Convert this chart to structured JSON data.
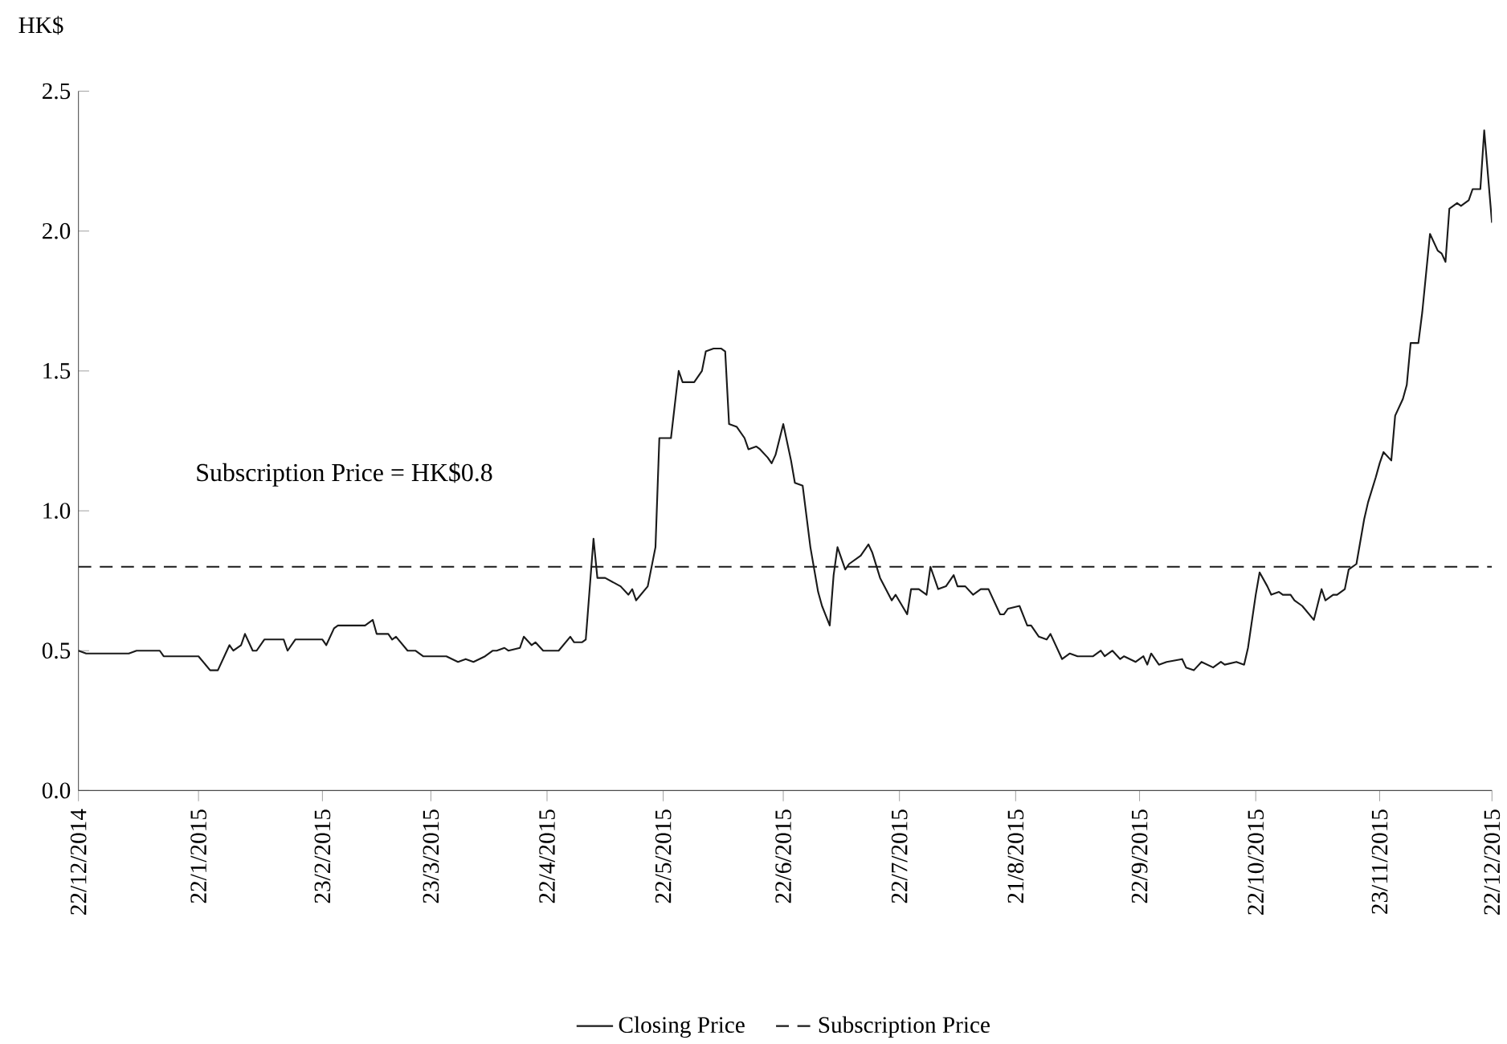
{
  "chart_data": {
    "type": "line",
    "ylabel": "HK$",
    "annotations": [
      "Subscription Price = HK$0.8"
    ],
    "xlim": [
      "2014-12-22",
      "2015-12-22"
    ],
    "ylim": [
      0,
      2.5
    ],
    "xticks": [
      {
        "value": "2014-12-22",
        "label": "22/12/2014"
      },
      {
        "value": "2015-01-22",
        "label": "22/1/2015"
      },
      {
        "value": "2015-02-23",
        "label": "23/2/2015"
      },
      {
        "value": "2015-03-23",
        "label": "23/3/2015"
      },
      {
        "value": "2015-04-22",
        "label": "22/4/2015"
      },
      {
        "value": "2015-05-22",
        "label": "22/5/2015"
      },
      {
        "value": "2015-06-22",
        "label": "22/6/2015"
      },
      {
        "value": "2015-07-22",
        "label": "22/7/2015"
      },
      {
        "value": "2015-08-21",
        "label": "21/8/2015"
      },
      {
        "value": "2015-09-22",
        "label": "22/9/2015"
      },
      {
        "value": "2015-10-22",
        "label": "22/10/2015"
      },
      {
        "value": "2015-11-23",
        "label": "23/11/2015"
      },
      {
        "value": "2015-12-22",
        "label": "22/12/2015"
      }
    ],
    "yticks": [
      {
        "value": 0,
        "label": "0.0"
      },
      {
        "value": 0.5,
        "label": "0.5"
      },
      {
        "value": 1,
        "label": "1.0"
      },
      {
        "value": 1.5,
        "label": "1.5"
      },
      {
        "value": 2,
        "label": "2.0"
      },
      {
        "value": 2.5,
        "label": "2.5"
      }
    ],
    "legend": "bottom",
    "line_style": "solid",
    "series": [
      {
        "name": "Closing Price",
        "color": "#1a1a1a",
        "x": [
          "2014-12-22",
          "2014-12-24",
          "2015-01-04",
          "2015-01-06",
          "2015-01-12",
          "2015-01-13",
          "2015-01-22",
          "2015-01-25",
          "2015-01-27",
          "2015-01-30",
          "2015-01-31",
          "2015-02-02",
          "2015-02-03",
          "2015-02-05",
          "2015-02-06",
          "2015-02-08",
          "2015-02-13",
          "2015-02-14",
          "2015-02-16",
          "2015-02-23",
          "2015-02-24",
          "2015-02-26",
          "2015-02-27",
          "2015-03-06",
          "2015-03-08",
          "2015-03-09",
          "2015-03-12",
          "2015-03-13",
          "2015-03-14",
          "2015-03-17",
          "2015-03-19",
          "2015-03-21",
          "2015-03-27",
          "2015-03-30",
          "2015-04-01",
          "2015-04-03",
          "2015-04-06",
          "2015-04-08",
          "2015-04-09",
          "2015-04-11",
          "2015-04-12",
          "2015-04-15",
          "2015-04-16",
          "2015-04-18",
          "2015-04-19",
          "2015-04-21",
          "2015-04-23",
          "2015-04-25",
          "2015-04-28",
          "2015-04-29",
          "2015-05-01",
          "2015-05-02",
          "2015-05-04",
          "2015-05-05",
          "2015-05-07",
          "2015-05-11",
          "2015-05-13",
          "2015-05-14",
          "2015-05-15",
          "2015-05-18",
          "2015-05-20",
          "2015-05-21",
          "2015-05-24",
          "2015-05-26",
          "2015-05-27",
          "2015-05-30",
          "2015-06-01",
          "2015-06-02",
          "2015-06-04",
          "2015-06-06",
          "2015-06-07",
          "2015-06-08",
          "2015-06-10",
          "2015-06-12",
          "2015-06-13",
          "2015-06-15",
          "2015-06-16",
          "2015-06-18",
          "2015-06-19",
          "2015-06-20",
          "2015-06-22",
          "2015-06-24",
          "2015-06-25",
          "2015-06-27",
          "2015-06-29",
          "2015-07-01",
          "2015-07-02",
          "2015-07-04",
          "2015-07-05",
          "2015-07-06",
          "2015-07-08",
          "2015-07-09",
          "2015-07-12",
          "2015-07-14",
          "2015-07-15",
          "2015-07-17",
          "2015-07-20",
          "2015-07-21",
          "2015-07-24",
          "2015-07-25",
          "2015-07-27",
          "2015-07-29",
          "2015-07-30",
          "2015-08-01",
          "2015-08-03",
          "2015-08-05",
          "2015-08-06",
          "2015-08-08",
          "2015-08-10",
          "2015-08-12",
          "2015-08-14",
          "2015-08-17",
          "2015-08-18",
          "2015-08-19",
          "2015-08-22",
          "2015-08-24",
          "2015-08-25",
          "2015-08-27",
          "2015-08-29",
          "2015-08-30",
          "2015-09-02",
          "2015-09-04",
          "2015-09-06",
          "2015-09-10",
          "2015-09-12",
          "2015-09-13",
          "2015-09-15",
          "2015-09-17",
          "2015-09-18",
          "2015-09-21",
          "2015-09-23",
          "2015-09-24",
          "2015-09-25",
          "2015-09-27",
          "2015-09-29",
          "2015-10-03",
          "2015-10-04",
          "2015-10-06",
          "2015-10-08",
          "2015-10-11",
          "2015-10-13",
          "2015-10-14",
          "2015-10-17",
          "2015-10-19",
          "2015-10-20",
          "2015-10-22",
          "2015-10-23",
          "2015-10-25",
          "2015-10-26",
          "2015-10-28",
          "2015-10-29",
          "2015-10-31",
          "2015-11-01",
          "2015-11-03",
          "2015-11-06",
          "2015-11-08",
          "2015-11-09",
          "2015-11-11",
          "2015-11-12",
          "2015-11-14",
          "2015-11-15",
          "2015-11-17",
          "2015-11-19",
          "2015-11-20",
          "2015-11-22",
          "2015-11-23",
          "2015-11-24",
          "2015-11-26",
          "2015-11-27",
          "2015-11-29",
          "2015-11-30",
          "2015-12-01",
          "2015-12-03",
          "2015-12-04",
          "2015-12-06",
          "2015-12-08",
          "2015-12-09",
          "2015-12-10",
          "2015-12-11",
          "2015-12-13",
          "2015-12-14",
          "2015-12-16",
          "2015-12-17",
          "2015-12-19",
          "2015-12-20",
          "2015-12-22"
        ],
        "values": [
          0.5,
          0.49,
          0.49,
          0.5,
          0.5,
          0.48,
          0.48,
          0.43,
          0.43,
          0.52,
          0.5,
          0.52,
          0.56,
          0.5,
          0.5,
          0.54,
          0.54,
          0.5,
          0.54,
          0.54,
          0.52,
          0.58,
          0.59,
          0.59,
          0.61,
          0.56,
          0.56,
          0.54,
          0.55,
          0.5,
          0.5,
          0.48,
          0.48,
          0.46,
          0.47,
          0.46,
          0.48,
          0.5,
          0.5,
          0.51,
          0.5,
          0.51,
          0.55,
          0.52,
          0.53,
          0.5,
          0.5,
          0.5,
          0.55,
          0.53,
          0.53,
          0.54,
          0.9,
          0.76,
          0.76,
          0.73,
          0.7,
          0.72,
          0.68,
          0.73,
          0.87,
          1.26,
          1.26,
          1.5,
          1.46,
          1.46,
          1.5,
          1.57,
          1.58,
          1.58,
          1.57,
          1.31,
          1.3,
          1.26,
          1.22,
          1.23,
          1.22,
          1.19,
          1.17,
          1.2,
          1.31,
          1.18,
          1.1,
          1.09,
          0.87,
          0.71,
          0.66,
          0.59,
          0.77,
          0.87,
          0.79,
          0.81,
          0.84,
          0.88,
          0.85,
          0.76,
          0.68,
          0.7,
          0.63,
          0.72,
          0.72,
          0.7,
          0.8,
          0.72,
          0.73,
          0.77,
          0.73,
          0.73,
          0.7,
          0.72,
          0.72,
          0.63,
          0.63,
          0.65,
          0.66,
          0.59,
          0.59,
          0.55,
          0.54,
          0.56,
          0.47,
          0.49,
          0.48,
          0.48,
          0.5,
          0.48,
          0.5,
          0.47,
          0.48,
          0.46,
          0.48,
          0.45,
          0.49,
          0.45,
          0.46,
          0.47,
          0.44,
          0.43,
          0.46,
          0.44,
          0.46,
          0.45,
          0.46,
          0.45,
          0.51,
          0.7,
          0.78,
          0.73,
          0.7,
          0.71,
          0.7,
          0.7,
          0.68,
          0.66,
          0.61,
          0.72,
          0.68,
          0.7,
          0.7,
          0.72,
          0.79,
          0.81,
          0.97,
          1.03,
          1.12,
          1.17,
          1.21,
          1.18,
          1.34,
          1.4,
          1.45,
          1.6,
          1.6,
          1.71,
          1.99,
          1.93,
          1.92,
          1.89,
          2.08,
          2.1,
          2.09,
          2.11,
          2.15,
          2.15,
          2.36,
          2.03
        ]
      },
      {
        "name": "Subscription Price",
        "color": "#1a1a1a",
        "line_style": "dashed",
        "x": [
          "2014-12-22",
          "2015-12-22"
        ],
        "values": [
          0.8,
          0.8
        ]
      }
    ]
  }
}
